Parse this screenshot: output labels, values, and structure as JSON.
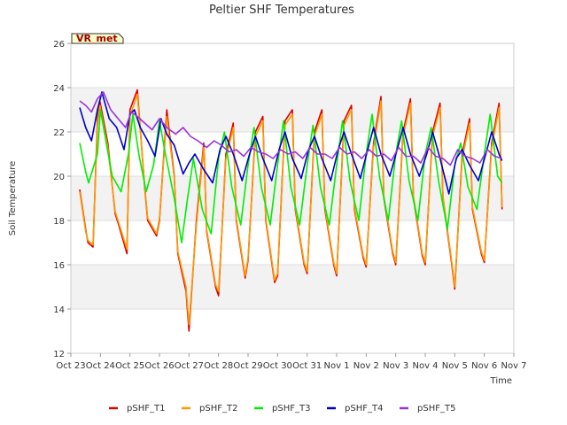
{
  "chart_data": {
    "type": "line",
    "title": "Peltier SHF Temperatures",
    "xlabel": "Time",
    "ylabel": "Soil Temperature",
    "badge": "VR_met",
    "ylim": [
      12,
      26
    ],
    "xlim": [
      "Oct 23",
      "Nov 7"
    ],
    "y_ticks": [
      12,
      14,
      16,
      18,
      20,
      22,
      24,
      26
    ],
    "x_ticks": [
      "Oct 23",
      "Oct 24",
      "Oct 25",
      "Oct 26",
      "Oct 27",
      "Oct 28",
      "Oct 29",
      "Oct 30",
      "Oct 31",
      "Nov 1",
      "Nov 2",
      "Nov 3",
      "Nov 4",
      "Nov 5",
      "Nov 6",
      "Nov 7"
    ],
    "grid": true,
    "legend_position": "bottom",
    "x_unit": "days since Oct 23",
    "series": [
      {
        "name": "pSHF_T1",
        "color": "#dd0000",
        "x": [
          0.3,
          0.5,
          0.58,
          0.75,
          0.9,
          0.98,
          1.25,
          1.5,
          1.62,
          1.9,
          2.0,
          2.25,
          2.5,
          2.6,
          2.9,
          3.0,
          3.25,
          3.5,
          3.62,
          3.9,
          4.0,
          4.25,
          4.5,
          4.6,
          4.9,
          5.0,
          5.25,
          5.5,
          5.6,
          5.9,
          6.0,
          6.25,
          6.5,
          6.6,
          6.9,
          7.0,
          7.25,
          7.5,
          7.6,
          7.9,
          8.0,
          8.25,
          8.5,
          8.6,
          8.9,
          9.0,
          9.25,
          9.5,
          9.6,
          9.9,
          10.0,
          10.25,
          10.5,
          10.6,
          10.9,
          11.0,
          11.25,
          11.5,
          11.6,
          11.9,
          12.0,
          12.25,
          12.5,
          12.6,
          12.9,
          13.0,
          13.25,
          13.5,
          13.6,
          13.9,
          14.0,
          14.25,
          14.5,
          14.6
        ],
        "y": [
          19.4,
          17.6,
          17.0,
          16.8,
          22.6,
          23.4,
          21.5,
          18.3,
          17.8,
          16.5,
          23.0,
          23.9,
          19.5,
          18.0,
          17.3,
          18.0,
          23.0,
          20.0,
          16.5,
          14.8,
          13.0,
          18.0,
          21.5,
          17.5,
          15.0,
          14.6,
          21.0,
          22.4,
          18.0,
          15.4,
          16.2,
          22.0,
          22.7,
          18.0,
          15.2,
          15.5,
          22.5,
          23.0,
          18.5,
          16.0,
          15.6,
          22.0,
          23.0,
          18.5,
          16.0,
          15.5,
          22.5,
          23.2,
          18.5,
          16.3,
          15.9,
          21.5,
          23.6,
          19.0,
          16.5,
          16.0,
          22.0,
          23.5,
          19.0,
          16.4,
          16.0,
          22.0,
          23.3,
          19.0,
          16.0,
          14.9,
          21.0,
          22.6,
          18.5,
          16.5,
          16.1,
          21.5,
          23.3,
          18.5
        ]
      },
      {
        "name": "pSHF_T2",
        "color": "#ff9900",
        "x": [
          0.3,
          0.5,
          0.58,
          0.75,
          0.9,
          0.98,
          1.25,
          1.5,
          1.62,
          1.9,
          2.0,
          2.25,
          2.5,
          2.6,
          2.9,
          3.0,
          3.25,
          3.5,
          3.62,
          3.9,
          4.0,
          4.25,
          4.5,
          4.6,
          4.9,
          5.0,
          5.25,
          5.5,
          5.6,
          5.9,
          6.0,
          6.25,
          6.5,
          6.6,
          6.9,
          7.0,
          7.25,
          7.5,
          7.6,
          7.9,
          8.0,
          8.25,
          8.5,
          8.6,
          8.9,
          9.0,
          9.25,
          9.5,
          9.6,
          9.9,
          10.0,
          10.25,
          10.5,
          10.6,
          10.9,
          11.0,
          11.25,
          11.5,
          11.6,
          11.9,
          12.0,
          12.25,
          12.5,
          12.6,
          12.9,
          13.0,
          13.25,
          13.5,
          13.6,
          13.9,
          14.0,
          14.25,
          14.5,
          14.6
        ],
        "y": [
          19.3,
          17.5,
          17.1,
          16.9,
          22.3,
          23.2,
          21.3,
          18.4,
          17.9,
          16.7,
          22.7,
          23.7,
          19.6,
          18.1,
          17.4,
          18.1,
          22.7,
          19.9,
          16.6,
          15.0,
          13.3,
          17.8,
          21.3,
          17.6,
          15.1,
          14.8,
          20.8,
          22.2,
          18.1,
          15.5,
          16.3,
          21.8,
          22.5,
          18.1,
          15.3,
          15.6,
          22.3,
          22.8,
          18.6,
          16.1,
          15.7,
          21.8,
          22.8,
          18.6,
          16.1,
          15.6,
          22.3,
          23.0,
          18.6,
          16.4,
          16.0,
          21.3,
          23.4,
          19.1,
          16.6,
          16.1,
          21.8,
          23.3,
          19.1,
          16.5,
          16.1,
          21.8,
          23.1,
          19.1,
          16.1,
          15.0,
          20.8,
          22.4,
          18.6,
          16.6,
          16.2,
          21.3,
          23.1,
          18.6
        ]
      },
      {
        "name": "pSHF_T3",
        "color": "#00ee00",
        "x": [
          0.3,
          0.5,
          0.6,
          0.9,
          1.0,
          1.2,
          1.4,
          1.7,
          1.95,
          2.1,
          2.3,
          2.55,
          2.8,
          3.0,
          3.2,
          3.5,
          3.75,
          3.95,
          4.15,
          4.45,
          4.75,
          5.0,
          5.2,
          5.45,
          5.75,
          6.0,
          6.2,
          6.45,
          6.75,
          7.0,
          7.2,
          7.45,
          7.75,
          8.0,
          8.2,
          8.45,
          8.75,
          9.0,
          9.2,
          9.45,
          9.75,
          10.0,
          10.2,
          10.45,
          10.75,
          11.0,
          11.2,
          11.45,
          11.75,
          12.0,
          12.2,
          12.45,
          12.75,
          13.0,
          13.2,
          13.45,
          13.75,
          14.0,
          14.2,
          14.45,
          14.6
        ],
        "y": [
          21.5,
          20.2,
          19.7,
          21.0,
          23.0,
          21.5,
          20.0,
          19.3,
          21.0,
          22.8,
          21.0,
          19.3,
          20.5,
          22.5,
          21.0,
          19.0,
          17.0,
          19.0,
          20.8,
          18.5,
          17.4,
          20.8,
          22.0,
          19.5,
          17.8,
          20.5,
          22.2,
          19.5,
          17.8,
          20.5,
          22.5,
          19.5,
          17.8,
          20.5,
          22.3,
          19.5,
          17.8,
          20.5,
          22.5,
          19.8,
          18.0,
          21.0,
          22.8,
          20.0,
          18.0,
          21.0,
          22.5,
          19.8,
          18.0,
          21.0,
          22.2,
          19.8,
          17.6,
          20.5,
          21.5,
          19.5,
          18.5,
          21.0,
          22.8,
          20.0,
          19.7
        ]
      },
      {
        "name": "pSHF_T4",
        "color": "#0000cc",
        "x": [
          0.3,
          0.5,
          0.7,
          0.9,
          1.05,
          1.3,
          1.55,
          1.8,
          2.0,
          2.15,
          2.35,
          2.6,
          2.85,
          3.05,
          3.25,
          3.5,
          3.8,
          4.0,
          4.2,
          4.5,
          4.8,
          5.05,
          5.25,
          5.5,
          5.8,
          6.05,
          6.25,
          6.5,
          6.8,
          7.05,
          7.25,
          7.5,
          7.8,
          8.05,
          8.25,
          8.5,
          8.8,
          9.05,
          9.25,
          9.5,
          9.8,
          10.05,
          10.25,
          10.5,
          10.8,
          11.05,
          11.25,
          11.5,
          11.8,
          12.05,
          12.25,
          12.5,
          12.8,
          13.05,
          13.25,
          13.5,
          13.8,
          14.05,
          14.25,
          14.5,
          14.6
        ],
        "y": [
          23.1,
          22.2,
          21.6,
          23.0,
          23.8,
          22.6,
          22.2,
          21.2,
          22.8,
          23.0,
          22.2,
          21.6,
          20.9,
          22.6,
          21.9,
          21.4,
          20.1,
          20.6,
          21.0,
          20.3,
          19.7,
          21.2,
          21.8,
          21.0,
          19.8,
          21.0,
          21.8,
          20.8,
          19.8,
          21.2,
          22.0,
          20.8,
          19.9,
          21.2,
          21.8,
          20.8,
          19.8,
          21.2,
          22.0,
          21.0,
          19.9,
          21.2,
          22.2,
          21.0,
          20.0,
          21.2,
          22.2,
          21.0,
          20.0,
          21.0,
          22.0,
          20.8,
          19.2,
          20.8,
          21.2,
          20.5,
          19.8,
          21.0,
          22.0,
          21.0,
          20.7
        ]
      },
      {
        "name": "pSHF_T5",
        "color": "#9933dd",
        "x": [
          0.3,
          0.5,
          0.7,
          0.9,
          1.1,
          1.35,
          1.6,
          1.85,
          2.05,
          2.25,
          2.5,
          2.75,
          3.0,
          3.25,
          3.55,
          3.8,
          4.05,
          4.3,
          4.6,
          4.85,
          5.1,
          5.35,
          5.6,
          5.85,
          6.1,
          6.35,
          6.6,
          6.85,
          7.1,
          7.35,
          7.6,
          7.85,
          8.1,
          8.35,
          8.6,
          8.85,
          9.1,
          9.35,
          9.6,
          9.85,
          10.1,
          10.35,
          10.6,
          10.85,
          11.1,
          11.35,
          11.6,
          11.85,
          12.1,
          12.35,
          12.6,
          12.85,
          13.1,
          13.35,
          13.6,
          13.85,
          14.1,
          14.35,
          14.6
        ],
        "y": [
          23.4,
          23.2,
          22.9,
          23.5,
          23.8,
          23.0,
          22.6,
          22.2,
          22.9,
          22.7,
          22.4,
          22.1,
          22.6,
          22.2,
          21.9,
          22.2,
          21.8,
          21.6,
          21.3,
          21.6,
          21.4,
          21.1,
          21.2,
          20.9,
          21.3,
          21.1,
          21.0,
          20.8,
          21.2,
          21.0,
          21.1,
          20.8,
          21.3,
          21.0,
          21.0,
          20.8,
          21.3,
          21.0,
          21.1,
          20.8,
          21.2,
          20.9,
          21.0,
          20.7,
          21.3,
          20.9,
          20.9,
          20.6,
          21.3,
          20.9,
          20.8,
          20.5,
          21.2,
          20.9,
          20.8,
          20.6,
          21.2,
          20.9,
          20.8
        ]
      }
    ]
  }
}
